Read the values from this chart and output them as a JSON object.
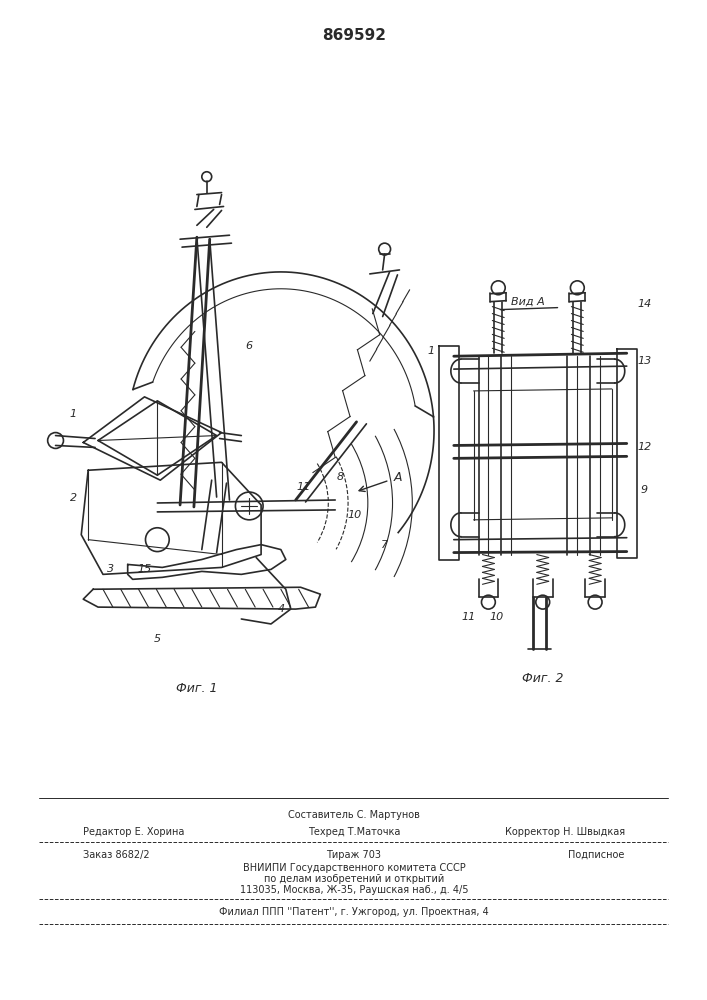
{
  "patent_number": "869592",
  "bg": "#ffffff",
  "lc": "#2a2a2a",
  "fig1_caption": "Фиг. 1",
  "fig2_caption": "Фиг. 2",
  "view_a": "Вид А",
  "row1_left": "Редактор Е. Хорина",
  "row1_center_top": "Составитель С. Мартунов",
  "row1_center_bot": "Техред Т.Маточка",
  "row1_right": "Корректор Н. Швыдкая",
  "row2_left": "Заказ 8682/2",
  "row2_center": "Тираж 703",
  "row2_right": "Подписное",
  "row3": "ВНИИПИ Государственного комитета СССР",
  "row4": "по делам изобретений и открытий",
  "row5": "113035, Москва, Ж-35, Раушская наб., д. 4/5",
  "row6": "Филиал ППП ''Патент'', г. Ужгород, ул. Проектная, 4"
}
